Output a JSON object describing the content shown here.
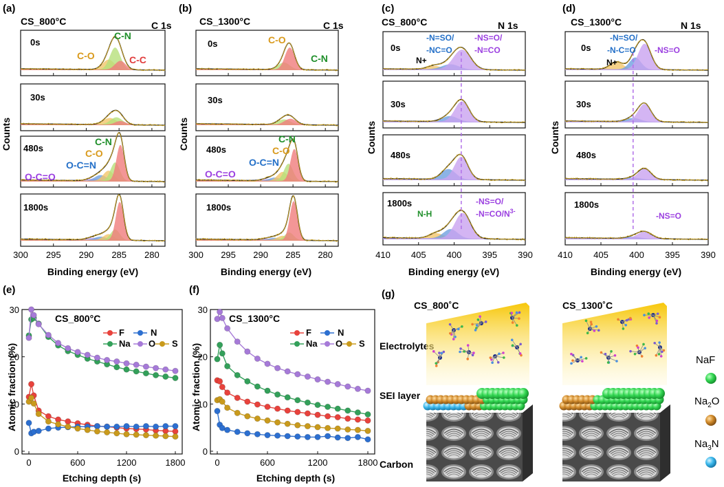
{
  "colors": {
    "black_fit": "#2b2b2b",
    "raw": "#c8a020",
    "co_fill": "#f2c66a",
    "cn_fill": "#b6e07a",
    "cc_fill": "#f07c7c",
    "blue_fill": "#6fa0e0",
    "purple_fill": "#c9a3f0",
    "purple_text": "#9b3fe0",
    "green_text": "#1f8f2a",
    "orange_text": "#d99a1c",
    "red_text": "#e03b3b",
    "blue_text": "#2470c8",
    "F": "#e8423c",
    "N": "#2c6fd0",
    "Na": "#33a05a",
    "O": "#a67ad8",
    "S": "#c99a1c",
    "naf": "#33d652",
    "na2o": "#d18a2a",
    "na3n": "#3bb8ec",
    "electrolyte_top": "#f7c70a",
    "carbon": "#5b5b5b"
  },
  "panels": {
    "a": {
      "letter": "(a)",
      "sample": "CS_800°C",
      "region": "C 1s"
    },
    "b": {
      "letter": "(b)",
      "sample": "CS_1300°C",
      "region": "C 1s"
    },
    "c": {
      "letter": "(c)",
      "sample": "CS_800°C",
      "region": "N 1s"
    },
    "d": {
      "letter": "(d)",
      "sample": "CS_1300°C",
      "region": "N 1s"
    },
    "e": {
      "letter": "(e)"
    },
    "f": {
      "letter": "(f)"
    },
    "g": {
      "letter": "(g)"
    }
  },
  "labels": {
    "counts": "Counts",
    "binding_energy": "Binding energy (eV)",
    "atomic_fraction": "Atomic fraction (%)",
    "etching_depth": "Etching depth (s)",
    "time_0": "0s",
    "time_30": "30s",
    "time_480": "480s",
    "time_1800": "1800s",
    "co": "C-O",
    "cn": "C-N",
    "cc": "C-C",
    "ocn": "O-C=N",
    "oco": "O-C=O",
    "nplus": "N+",
    "nso_nco_1": "-N=SO/",
    "nso_nco_2": "-NC=O",
    "nso_nco_2d": "-N-C=O",
    "nsoo_1": "-NS=O/",
    "nsoo_2": "-N=CO",
    "nsoo_single": "-NS=O",
    "nh": "N-H",
    "n3_base": "-N=CO/N",
    "n3_sup": "3-"
  },
  "legend": {
    "F": "F",
    "N": "N",
    "Na": "Na",
    "O": "O",
    "S": "S"
  },
  "schematic": {
    "sample_left": "CS_800˚C",
    "sample_right": "CS_1300˚C",
    "electrolytes": "Electrolytes",
    "sei": "SEI layer",
    "carbon": "Carbon",
    "naf": "NaF",
    "na2o_base": "Na",
    "na2o_sub": "2",
    "na2o_tail": "O",
    "na3n_base": "Na",
    "na3n_sub": "3",
    "na3n_tail": "N"
  },
  "chart_data": [
    {
      "id": "a",
      "type": "line",
      "title": "CS_800°C",
      "subtitle": "C 1s",
      "xlabel": "Binding energy (eV)",
      "ylabel": "Counts",
      "xlim": [
        300,
        278
      ],
      "xticks": [
        300,
        295,
        290,
        285,
        280
      ],
      "components": {
        "C-O": 286.6,
        "C-N": 285.6,
        "C-C": 284.8,
        "O-C=N": 287.8,
        "O-C=O": 289.0
      },
      "traces": [
        {
          "time": "0s",
          "peaks": [
            {
              "c": 286.6,
              "h": 0.28,
              "w": 0.9
            },
            {
              "c": 285.6,
              "h": 0.62,
              "w": 0.8
            },
            {
              "c": 284.8,
              "h": 0.25,
              "w": 0.8
            }
          ]
        },
        {
          "time": "30s",
          "peaks": [
            {
              "c": 286.4,
              "h": 0.18,
              "w": 1.0
            },
            {
              "c": 285.4,
              "h": 0.2,
              "w": 0.9
            },
            {
              "c": 284.8,
              "h": 0.1,
              "w": 0.8
            }
          ]
        },
        {
          "time": "480s",
          "peaks": [
            {
              "c": 289.0,
              "h": 0.05,
              "w": 1.0
            },
            {
              "c": 287.8,
              "h": 0.14,
              "w": 0.9
            },
            {
              "c": 286.6,
              "h": 0.25,
              "w": 0.8
            },
            {
              "c": 285.6,
              "h": 0.45,
              "w": 0.7
            },
            {
              "c": 284.8,
              "h": 0.88,
              "w": 0.6
            }
          ]
        },
        {
          "time": "1800s",
          "peaks": [
            {
              "c": 289.0,
              "h": 0.05,
              "w": 1.0
            },
            {
              "c": 287.8,
              "h": 0.08,
              "w": 0.9
            },
            {
              "c": 286.6,
              "h": 0.14,
              "w": 0.8
            },
            {
              "c": 285.6,
              "h": 0.25,
              "w": 0.7
            },
            {
              "c": 284.9,
              "h": 0.9,
              "w": 0.6
            }
          ]
        }
      ]
    },
    {
      "id": "b",
      "type": "line",
      "title": "CS_1300°C",
      "subtitle": "C 1s",
      "xlabel": "Binding energy (eV)",
      "ylabel": "Counts",
      "xlim": [
        300,
        278
      ],
      "xticks": [
        300,
        295,
        290,
        285,
        280
      ],
      "traces": [
        {
          "time": "0s",
          "peaks": [
            {
              "c": 286.4,
              "h": 0.2,
              "w": 0.9
            },
            {
              "c": 285.5,
              "h": 0.62,
              "w": 0.75
            }
          ]
        },
        {
          "time": "30s",
          "peaks": [
            {
              "c": 286.4,
              "h": 0.14,
              "w": 1.0
            },
            {
              "c": 285.4,
              "h": 0.16,
              "w": 0.9
            }
          ]
        },
        {
          "time": "480s",
          "peaks": [
            {
              "c": 289.0,
              "h": 0.04,
              "w": 1.0
            },
            {
              "c": 287.8,
              "h": 0.08,
              "w": 0.9
            },
            {
              "c": 286.6,
              "h": 0.22,
              "w": 0.8
            },
            {
              "c": 285.7,
              "h": 0.42,
              "w": 0.7
            },
            {
              "c": 284.8,
              "h": 0.78,
              "w": 0.6
            }
          ]
        },
        {
          "time": "1800s",
          "peaks": [
            {
              "c": 289.0,
              "h": 0.03,
              "w": 1.0
            },
            {
              "c": 287.8,
              "h": 0.05,
              "w": 0.9
            },
            {
              "c": 286.6,
              "h": 0.1,
              "w": 0.8
            },
            {
              "c": 285.6,
              "h": 0.18,
              "w": 0.7
            },
            {
              "c": 284.9,
              "h": 0.92,
              "w": 0.6
            }
          ]
        }
      ]
    },
    {
      "id": "c",
      "type": "line",
      "title": "CS_800°C",
      "subtitle": "N 1s",
      "xlabel": "Binding energy (eV)",
      "ylabel": "Counts",
      "xlim": [
        410,
        390
      ],
      "xticks": [
        410,
        405,
        400,
        395,
        390
      ],
      "reference_line": 399.0,
      "traces": [
        {
          "time": "0s",
          "peaks": [
            {
              "c": 402.8,
              "h": 0.1,
              "w": 1.0
            },
            {
              "c": 400.5,
              "h": 0.15,
              "w": 1.2
            },
            {
              "c": 398.9,
              "h": 0.58,
              "w": 1.2
            }
          ]
        },
        {
          "time": "30s",
          "peaks": [
            {
              "c": 400.6,
              "h": 0.15,
              "w": 1.1
            },
            {
              "c": 398.9,
              "h": 0.55,
              "w": 1.0
            }
          ]
        },
        {
          "time": "480s",
          "peaks": [
            {
              "c": 400.8,
              "h": 0.25,
              "w": 1.0
            },
            {
              "c": 399.0,
              "h": 0.55,
              "w": 0.95
            }
          ]
        },
        {
          "time": "1800s",
          "peaks": [
            {
              "c": 402.5,
              "h": 0.12,
              "w": 1.0
            },
            {
              "c": 400.5,
              "h": 0.22,
              "w": 1.0
            },
            {
              "c": 398.8,
              "h": 0.6,
              "w": 1.1
            }
          ]
        }
      ]
    },
    {
      "id": "d",
      "type": "line",
      "title": "CS_1300°C",
      "subtitle": "N 1s",
      "xlabel": "Binding energy (eV)",
      "ylabel": "Counts",
      "xlim": [
        410,
        390
      ],
      "xticks": [
        410,
        405,
        400,
        395,
        390
      ],
      "reference_line": 400.5,
      "traces": [
        {
          "time": "0s",
          "peaks": [
            {
              "c": 402.8,
              "h": 0.22,
              "w": 0.9
            },
            {
              "c": 400.2,
              "h": 0.35,
              "w": 0.8
            },
            {
              "c": 398.9,
              "h": 0.75,
              "w": 0.9
            }
          ]
        },
        {
          "time": "30s",
          "peaks": [
            {
              "c": 400.5,
              "h": 0.1,
              "w": 1.0
            },
            {
              "c": 398.9,
              "h": 0.48,
              "w": 0.9
            }
          ]
        },
        {
          "time": "480s",
          "peaks": [
            {
              "c": 400.5,
              "h": 0.04,
              "w": 1.0
            },
            {
              "c": 398.9,
              "h": 0.26,
              "w": 0.9
            }
          ]
        },
        {
          "time": "1800s",
          "peaks": [
            {
              "c": 400.5,
              "h": 0.04,
              "w": 1.0
            },
            {
              "c": 398.9,
              "h": 0.16,
              "w": 1.0
            }
          ]
        }
      ]
    },
    {
      "id": "e",
      "type": "line",
      "title": "CS_800°C",
      "xlabel": "Etching depth (s)",
      "ylabel": "Atomic fraction (%)",
      "xlim": [
        0,
        1800
      ],
      "ylim": [
        0,
        30
      ],
      "xticks": [
        0,
        600,
        1200,
        1800
      ],
      "yticks": [
        0,
        10,
        20,
        30
      ],
      "x": [
        0,
        30,
        60,
        120,
        240,
        360,
        480,
        600,
        720,
        840,
        960,
        1080,
        1200,
        1320,
        1440,
        1560,
        1680,
        1800
      ],
      "series": [
        {
          "name": "F",
          "values": [
            11.5,
            14.2,
            11.8,
            8.6,
            7.4,
            6.7,
            6.3,
            5.9,
            5.6,
            5.3,
            5.2,
            5.0,
            4.8,
            4.7,
            4.6,
            4.4,
            4.3,
            4.2
          ]
        },
        {
          "name": "N",
          "values": [
            6.0,
            3.8,
            4.1,
            4.3,
            4.8,
            5.0,
            5.1,
            5.2,
            5.2,
            5.3,
            5.2,
            5.2,
            5.3,
            5.2,
            5.3,
            5.2,
            5.3,
            5.3
          ]
        },
        {
          "name": "Na",
          "values": [
            24.5,
            27.9,
            28.2,
            27.0,
            24.2,
            22.4,
            21.2,
            20.4,
            19.6,
            19.0,
            18.4,
            17.8,
            17.3,
            16.9,
            16.5,
            16.1,
            15.8,
            15.5
          ]
        },
        {
          "name": "O",
          "values": [
            24.0,
            30.0,
            28.8,
            26.9,
            24.6,
            22.9,
            21.8,
            21.0,
            20.4,
            19.8,
            19.3,
            19.0,
            18.6,
            18.3,
            17.9,
            17.6,
            17.3,
            17.0
          ]
        },
        {
          "name": "S",
          "values": [
            10.5,
            11.3,
            10.1,
            7.9,
            6.3,
            5.7,
            5.2,
            4.8,
            4.5,
            4.2,
            4.0,
            3.8,
            3.6,
            3.5,
            3.4,
            3.3,
            3.2,
            3.1
          ]
        }
      ]
    },
    {
      "id": "f",
      "type": "line",
      "title": "CS_1300°C",
      "xlabel": "Etching depth (s)",
      "ylabel": "Atomic fraction (%)",
      "xlim": [
        0,
        1800
      ],
      "ylim": [
        0,
        30
      ],
      "xticks": [
        0,
        600,
        1200,
        1800
      ],
      "yticks": [
        0,
        10,
        20,
        30
      ],
      "x": [
        0,
        30,
        60,
        120,
        240,
        360,
        480,
        600,
        720,
        840,
        960,
        1080,
        1200,
        1320,
        1440,
        1560,
        1680,
        1800
      ],
      "series": [
        {
          "name": "F",
          "values": [
            15.0,
            14.8,
            13.6,
            12.4,
            11.3,
            10.5,
            9.9,
            9.4,
            9.0,
            8.6,
            8.3,
            8.0,
            7.7,
            7.4,
            7.2,
            6.9,
            6.7,
            6.5
          ]
        },
        {
          "name": "N",
          "values": [
            8.5,
            5.6,
            4.9,
            4.5,
            4.1,
            3.8,
            3.6,
            3.4,
            3.3,
            3.2,
            3.1,
            3.0,
            3.0,
            3.2,
            2.9,
            2.8,
            3.0,
            2.5
          ]
        },
        {
          "name": "Na",
          "values": [
            19.5,
            22.5,
            20.7,
            18.0,
            16.1,
            14.8,
            13.7,
            12.8,
            12.0,
            11.4,
            10.8,
            10.3,
            9.8,
            9.4,
            9.0,
            8.6,
            8.2,
            7.8
          ]
        },
        {
          "name": "O",
          "values": [
            28.0,
            29.5,
            28.2,
            26.0,
            23.2,
            21.1,
            19.6,
            18.5,
            17.6,
            16.9,
            16.3,
            15.8,
            15.2,
            14.7,
            14.2,
            13.7,
            13.2,
            12.8
          ]
        },
        {
          "name": "S",
          "values": [
            10.8,
            11.0,
            10.5,
            9.2,
            8.1,
            7.4,
            6.9,
            6.5,
            6.1,
            5.8,
            5.5,
            5.3,
            5.1,
            4.9,
            4.8,
            4.6,
            4.5,
            4.3
          ]
        }
      ]
    }
  ]
}
